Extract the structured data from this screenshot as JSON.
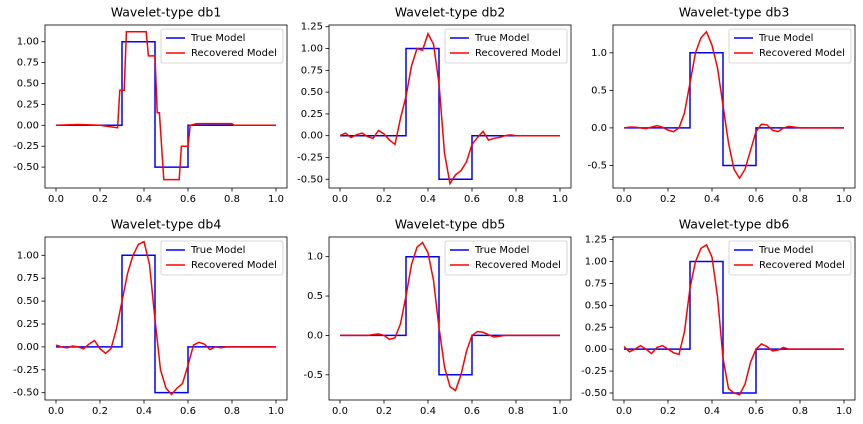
{
  "chart_data": [
    {
      "type": "line",
      "title": "Wavelet-type db1",
      "xlim": [
        -0.05,
        1.05
      ],
      "ylim": [
        -0.75,
        1.2
      ],
      "xticks": [
        {
          "value": 0,
          "label": "0.0"
        },
        0.2,
        0.4,
        0.6,
        0.8,
        {
          "value": 1,
          "label": "1.0"
        }
      ],
      "yticks": [
        {
          "value": -0.5,
          "label": "-0.50"
        },
        {
          "value": -0.25,
          "label": "-0.25"
        },
        {
          "value": 0,
          "label": "0.00"
        },
        {
          "value": 0.25,
          "label": "0.25"
        },
        {
          "value": 0.5,
          "label": "0.50"
        },
        {
          "value": 0.75,
          "label": "0.75"
        },
        {
          "value": 1,
          "label": "1.00"
        }
      ],
      "legend": "upper right",
      "series": [
        {
          "name": "True Model",
          "color": "#0000ff",
          "x": [
            0,
            0.3,
            0.3,
            0.45,
            0.45,
            0.6,
            0.6,
            1
          ],
          "values": [
            0,
            0,
            1,
            1,
            -0.5,
            -0.5,
            0,
            0
          ]
        },
        {
          "name": "Recovered Model",
          "color": "#ff0000",
          "x": [
            0,
            0.1,
            0.2,
            0.28,
            0.29,
            0.31,
            0.32,
            0.37,
            0.41,
            0.42,
            0.45,
            0.46,
            0.47,
            0.49,
            0.56,
            0.57,
            0.6,
            0.61,
            0.64,
            0.8,
            0.81,
            1.0
          ],
          "values": [
            0,
            0.01,
            0,
            -0.03,
            0.42,
            0.42,
            1.12,
            1.12,
            1.12,
            0.83,
            0.83,
            0.15,
            0.15,
            -0.65,
            -0.65,
            -0.25,
            -0.25,
            0.0,
            0.02,
            0.02,
            0,
            0
          ]
        }
      ]
    },
    {
      "type": "line",
      "title": "Wavelet-type db2",
      "xlim": [
        -0.05,
        1.05
      ],
      "ylim": [
        -0.6,
        1.27
      ],
      "xticks": [
        {
          "value": 0,
          "label": "0.0"
        },
        0.2,
        0.4,
        0.6,
        0.8,
        {
          "value": 1,
          "label": "1.0"
        }
      ],
      "yticks": [
        {
          "value": -0.5,
          "label": "-0.50"
        },
        {
          "value": -0.25,
          "label": "-0.25"
        },
        {
          "value": 0,
          "label": "0.00"
        },
        {
          "value": 0.25,
          "label": "0.25"
        },
        {
          "value": 0.5,
          "label": "0.50"
        },
        {
          "value": 0.75,
          "label": "0.75"
        },
        {
          "value": 1,
          "label": "1.00"
        },
        {
          "value": 1.25,
          "label": "1.25"
        }
      ],
      "legend": "upper right",
      "series": [
        {
          "name": "True Model",
          "color": "#0000ff",
          "x": [
            0,
            0.3,
            0.3,
            0.45,
            0.45,
            0.6,
            0.6,
            1
          ],
          "values": [
            0,
            0,
            1,
            1,
            -0.5,
            -0.5,
            0,
            0
          ]
        },
        {
          "name": "Recovered Model",
          "color": "#ff0000",
          "x": [
            0,
            0.025,
            0.05,
            0.075,
            0.1,
            0.125,
            0.15,
            0.175,
            0.2,
            0.225,
            0.25,
            0.275,
            0.3,
            0.325,
            0.35,
            0.375,
            0.4,
            0.425,
            0.45,
            0.475,
            0.5,
            0.525,
            0.55,
            0.575,
            0.6,
            0.625,
            0.65,
            0.675,
            0.7,
            0.725,
            0.75,
            0.775,
            0.8,
            0.825,
            0.85,
            0.875,
            0.9,
            0.925,
            0.95,
            0.975,
            1
          ],
          "values": [
            0,
            0.03,
            -0.02,
            0.01,
            0.03,
            -0.01,
            -0.03,
            0.06,
            0.02,
            -0.05,
            -0.1,
            0.2,
            0.45,
            0.8,
            1.0,
            0.98,
            1.17,
            1.05,
            0.6,
            -0.2,
            -0.55,
            -0.45,
            -0.4,
            -0.3,
            -0.1,
            -0.02,
            0.05,
            -0.05,
            -0.03,
            -0.02,
            0,
            0.01,
            0,
            0,
            0,
            0,
            0,
            0,
            0,
            0,
            0
          ]
        }
      ]
    },
    {
      "type": "line",
      "title": "Wavelet-type db3",
      "xlim": [
        -0.05,
        1.05
      ],
      "ylim": [
        -0.8,
        1.37
      ],
      "xticks": [
        {
          "value": 0,
          "label": "0.0"
        },
        0.2,
        0.4,
        0.6,
        0.8,
        {
          "value": 1,
          "label": "1.0"
        }
      ],
      "yticks": [
        -0.5,
        {
          "value": 0,
          "label": "0.0"
        },
        0.5,
        {
          "value": 1,
          "label": "1.0"
        }
      ],
      "legend": "upper right",
      "series": [
        {
          "name": "True Model",
          "color": "#0000ff",
          "x": [
            0,
            0.3,
            0.3,
            0.45,
            0.45,
            0.6,
            0.6,
            1
          ],
          "values": [
            0,
            0,
            1,
            1,
            -0.5,
            -0.5,
            0,
            0
          ]
        },
        {
          "name": "Recovered Model",
          "color": "#ff0000",
          "x": [
            0,
            0.025,
            0.05,
            0.075,
            0.1,
            0.125,
            0.15,
            0.175,
            0.2,
            0.225,
            0.25,
            0.275,
            0.3,
            0.325,
            0.35,
            0.375,
            0.4,
            0.425,
            0.45,
            0.475,
            0.5,
            0.525,
            0.55,
            0.575,
            0.6,
            0.625,
            0.65,
            0.675,
            0.7,
            0.725,
            0.75,
            0.775,
            0.8,
            0.825,
            0.85,
            0.875,
            0.9,
            0.925,
            0.95,
            0.975,
            1
          ],
          "values": [
            0,
            0.01,
            0.01,
            0,
            -0.01,
            0.01,
            0.03,
            0.01,
            -0.03,
            -0.05,
            0,
            0.2,
            0.6,
            1.0,
            1.2,
            1.28,
            1.1,
            0.8,
            0.3,
            -0.2,
            -0.55,
            -0.67,
            -0.55,
            -0.3,
            -0.05,
            0.05,
            0.04,
            -0.03,
            -0.05,
            0,
            0.02,
            0.01,
            0,
            0,
            0,
            0,
            0,
            0,
            0,
            0,
            0
          ]
        }
      ]
    },
    {
      "type": "line",
      "title": "Wavelet-type db4",
      "xlim": [
        -0.05,
        1.05
      ],
      "ylim": [
        -0.58,
        1.2
      ],
      "xticks": [
        {
          "value": 0,
          "label": "0.0"
        },
        0.2,
        0.4,
        0.6,
        0.8,
        {
          "value": 1,
          "label": "1.0"
        }
      ],
      "yticks": [
        {
          "value": -0.5,
          "label": "-0.50"
        },
        {
          "value": -0.25,
          "label": "-0.25"
        },
        {
          "value": 0,
          "label": "0.00"
        },
        {
          "value": 0.25,
          "label": "0.25"
        },
        {
          "value": 0.5,
          "label": "0.50"
        },
        {
          "value": 0.75,
          "label": "0.75"
        },
        {
          "value": 1,
          "label": "1.00"
        }
      ],
      "legend": "upper right",
      "series": [
        {
          "name": "True Model",
          "color": "#0000ff",
          "x": [
            0,
            0.3,
            0.3,
            0.45,
            0.45,
            0.6,
            0.6,
            1
          ],
          "values": [
            0,
            0,
            1,
            1,
            -0.5,
            -0.5,
            0,
            0
          ]
        },
        {
          "name": "Recovered Model",
          "color": "#ff0000",
          "x": [
            0,
            0.025,
            0.05,
            0.075,
            0.1,
            0.125,
            0.15,
            0.175,
            0.2,
            0.225,
            0.25,
            0.275,
            0.3,
            0.325,
            0.35,
            0.375,
            0.4,
            0.425,
            0.45,
            0.475,
            0.5,
            0.525,
            0.55,
            0.575,
            0.6,
            0.625,
            0.65,
            0.675,
            0.7,
            0.725,
            0.75,
            0.775,
            0.8,
            0.825,
            0.85,
            0.875,
            0.9,
            0.925,
            0.95,
            0.975,
            1
          ],
          "values": [
            0.02,
            0,
            -0.01,
            0.01,
            0,
            -0.02,
            0.03,
            0.07,
            -0.02,
            -0.07,
            -0.02,
            0.2,
            0.5,
            0.8,
            1.0,
            1.12,
            1.15,
            0.9,
            0.3,
            -0.25,
            -0.45,
            -0.52,
            -0.45,
            -0.4,
            -0.2,
            0.02,
            0.05,
            0.03,
            -0.03,
            0,
            -0.01,
            0,
            0,
            0,
            0,
            0,
            0,
            0,
            0,
            0,
            0
          ]
        }
      ]
    },
    {
      "type": "line",
      "title": "Wavelet-type db5",
      "xlim": [
        -0.05,
        1.05
      ],
      "ylim": [
        -0.82,
        1.25
      ],
      "xticks": [
        {
          "value": 0,
          "label": "0.0"
        },
        0.2,
        0.4,
        0.6,
        0.8,
        {
          "value": 1,
          "label": "1.0"
        }
      ],
      "yticks": [
        -0.5,
        {
          "value": 0,
          "label": "0.0"
        },
        0.5,
        {
          "value": 1,
          "label": "1.0"
        }
      ],
      "legend": "upper right",
      "series": [
        {
          "name": "True Model",
          "color": "#0000ff",
          "x": [
            0,
            0.3,
            0.3,
            0.45,
            0.45,
            0.6,
            0.6,
            1
          ],
          "values": [
            0,
            0,
            1,
            1,
            -0.5,
            -0.5,
            0,
            0
          ]
        },
        {
          "name": "Recovered Model",
          "color": "#ff0000",
          "x": [
            0,
            0.025,
            0.05,
            0.075,
            0.1,
            0.125,
            0.15,
            0.175,
            0.2,
            0.225,
            0.25,
            0.275,
            0.3,
            0.325,
            0.35,
            0.375,
            0.4,
            0.425,
            0.45,
            0.475,
            0.5,
            0.525,
            0.55,
            0.575,
            0.6,
            0.625,
            0.65,
            0.675,
            0.7,
            0.725,
            0.75,
            0.775,
            0.8,
            0.825,
            0.85,
            0.875,
            0.9,
            0.925,
            0.95,
            0.975,
            1
          ],
          "values": [
            0,
            0,
            0,
            0,
            0,
            0,
            0.01,
            0.02,
            0,
            -0.05,
            -0.03,
            0.15,
            0.5,
            0.9,
            1.12,
            1.18,
            1.05,
            0.7,
            0.1,
            -0.4,
            -0.65,
            -0.7,
            -0.5,
            -0.2,
            0,
            0.05,
            0.04,
            0.01,
            -0.02,
            -0.01,
            0,
            0,
            0,
            0,
            0,
            0,
            0,
            0,
            0,
            0,
            0
          ]
        }
      ]
    },
    {
      "type": "line",
      "title": "Wavelet-type db6",
      "xlim": [
        -0.05,
        1.05
      ],
      "ylim": [
        -0.58,
        1.28
      ],
      "xticks": [
        {
          "value": 0,
          "label": "0.0"
        },
        0.2,
        0.4,
        0.6,
        0.8,
        {
          "value": 1,
          "label": "1.0"
        }
      ],
      "yticks": [
        {
          "value": -0.5,
          "label": "-0.50"
        },
        {
          "value": -0.25,
          "label": "-0.25"
        },
        {
          "value": 0,
          "label": "0.00"
        },
        {
          "value": 0.25,
          "label": "0.25"
        },
        {
          "value": 0.5,
          "label": "0.50"
        },
        {
          "value": 0.75,
          "label": "0.75"
        },
        {
          "value": 1,
          "label": "1.00"
        },
        {
          "value": 1.25,
          "label": "1.25"
        }
      ],
      "legend": "upper right",
      "series": [
        {
          "name": "True Model",
          "color": "#0000ff",
          "x": [
            0,
            0.3,
            0.3,
            0.45,
            0.45,
            0.6,
            0.6,
            1
          ],
          "values": [
            0,
            0,
            1,
            1,
            -0.5,
            -0.5,
            0,
            0
          ]
        },
        {
          "name": "Recovered Model",
          "color": "#ff0000",
          "x": [
            0,
            0.025,
            0.05,
            0.075,
            0.1,
            0.125,
            0.15,
            0.175,
            0.2,
            0.225,
            0.25,
            0.275,
            0.3,
            0.325,
            0.35,
            0.375,
            0.4,
            0.425,
            0.45,
            0.475,
            0.5,
            0.525,
            0.55,
            0.575,
            0.6,
            0.625,
            0.65,
            0.675,
            0.7,
            0.725,
            0.75,
            0.775,
            0.8,
            0.825,
            0.85,
            0.875,
            0.9,
            0.925,
            0.95,
            0.975,
            1
          ],
          "values": [
            0.03,
            -0.03,
            0,
            0.04,
            0,
            -0.05,
            0.02,
            0.04,
            0,
            -0.04,
            -0.06,
            0.2,
            0.7,
            1.0,
            1.15,
            1.19,
            1.05,
            0.6,
            -0.1,
            -0.45,
            -0.5,
            -0.52,
            -0.4,
            -0.15,
            0,
            0.06,
            0.03,
            -0.02,
            -0.01,
            0.02,
            0,
            0,
            0,
            0,
            0,
            0,
            0,
            0,
            0,
            0,
            0
          ]
        }
      ]
    }
  ]
}
